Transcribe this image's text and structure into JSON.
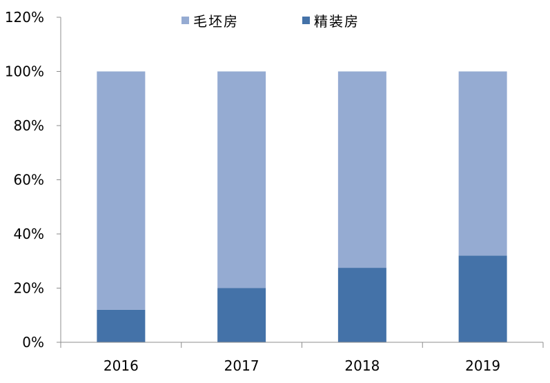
{
  "chart_data": {
    "type": "bar",
    "stacked": true,
    "categories": [
      "2016",
      "2017",
      "2018",
      "2019"
    ],
    "series": [
      {
        "name": "毛坯房",
        "values": [
          88,
          80,
          72.5,
          68
        ],
        "color": "#95abd2"
      },
      {
        "name": "精装房",
        "values": [
          12,
          20,
          27.5,
          32
        ],
        "color": "#4472a8"
      }
    ],
    "ylim": [
      0,
      120
    ],
    "yticks": [
      "0%",
      "20%",
      "40%",
      "60%",
      "80%",
      "100%",
      "120%"
    ],
    "ytick_values": [
      0,
      20,
      40,
      60,
      80,
      100,
      120
    ],
    "grid": false,
    "legend_position": "top",
    "title": "",
    "xlabel": "",
    "ylabel": ""
  }
}
